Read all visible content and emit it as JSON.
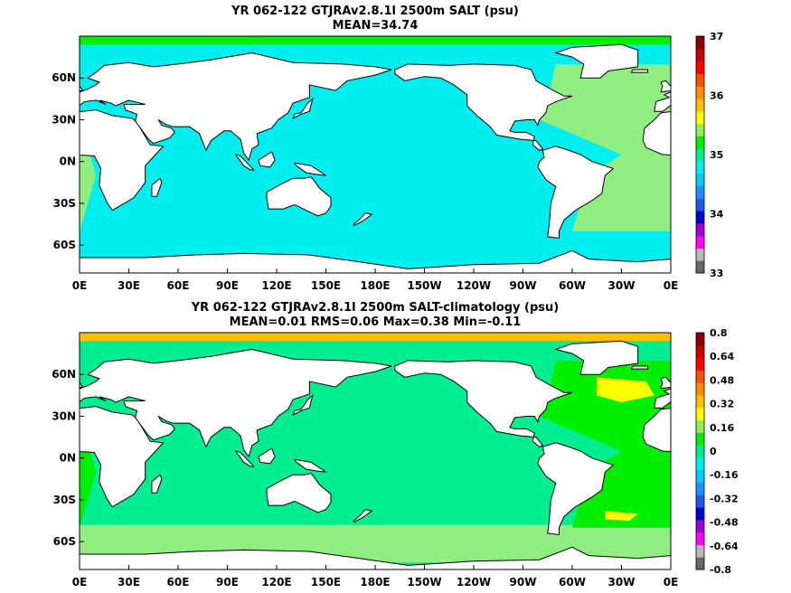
{
  "chart_data": [
    {
      "type": "heatmap",
      "title": "YR 062-122 GTJRAv2.8.1l 2500m SALT (psu)",
      "subtitle": "MEAN=34.74",
      "x_ticks": [
        "0E",
        "30E",
        "60E",
        "90E",
        "120E",
        "150E",
        "180E",
        "150W",
        "120W",
        "90W",
        "60W",
        "30W",
        "0E"
      ],
      "y_ticks": [
        "60N",
        "30N",
        "0N",
        "30S",
        "60S"
      ],
      "y_tick_values": [
        60,
        30,
        0,
        -30,
        -60
      ],
      "xlim": [
        0,
        360
      ],
      "ylim": [
        -80,
        90
      ],
      "colorbar_labels": [
        "37",
        "36",
        "35",
        "34",
        "33"
      ],
      "colorbar_range": [
        33,
        37
      ],
      "colorbar_colors": [
        "#666666",
        "#b8b8b8",
        "#ff00ff",
        "#a000d0",
        "#0000d0",
        "#1a5ce8",
        "#1e90ff",
        "#00ccee",
        "#00eeee",
        "#00ee90",
        "#00ee00",
        "#90ee50",
        "#ffff00",
        "#ffc000",
        "#ff8c00",
        "#ff5000",
        "#ff0000",
        "#c80000",
        "#8b0000"
      ],
      "field_colors": {
        "pacific_indian": "#00eeee",
        "atlantic": "#90ee80",
        "southern_ocean": "#00eeee",
        "arctic": "#00ee00"
      },
      "mean": 34.74
    },
    {
      "type": "heatmap",
      "title": "YR 062-122 GTJRAv2.8.1l 2500m SALT-climatology (psu)",
      "subtitle": "MEAN=0.01   RMS=0.06   Max=0.38   Min=-0.11",
      "x_ticks": [
        "0E",
        "30E",
        "60E",
        "90E",
        "120E",
        "150E",
        "180E",
        "150W",
        "120W",
        "90W",
        "60W",
        "30W",
        "0E"
      ],
      "y_ticks": [
        "60N",
        "30N",
        "0N",
        "30S",
        "60S"
      ],
      "y_tick_values": [
        60,
        30,
        0,
        -30,
        -60
      ],
      "xlim": [
        0,
        360
      ],
      "ylim": [
        -80,
        90
      ],
      "colorbar_labels": [
        "0.8",
        "0.64",
        "0.48",
        "0.32",
        "0.16",
        "0",
        "-0.16",
        "-0.32",
        "-0.48",
        "-0.64",
        "-0.8"
      ],
      "colorbar_range": [
        -0.8,
        0.8
      ],
      "colorbar_colors": [
        "#666666",
        "#b8b8b8",
        "#ff00ff",
        "#a000d0",
        "#0000d0",
        "#1a5ce8",
        "#1e90ff",
        "#00ccee",
        "#00eeee",
        "#00ee90",
        "#00ee00",
        "#90ee50",
        "#ffff00",
        "#ffc000",
        "#ff8c00",
        "#ff5000",
        "#ff0000",
        "#c80000",
        "#8b0000"
      ],
      "field_colors": {
        "pacific_indian": "#00ee90",
        "atlantic": "#00ee00",
        "north_atlantic_high": "#ffff00",
        "southern_ocean": "#90ee80",
        "arctic": "#ffc000"
      },
      "mean": 0.01,
      "rms": 0.06,
      "max": 0.38,
      "min": -0.11
    }
  ]
}
